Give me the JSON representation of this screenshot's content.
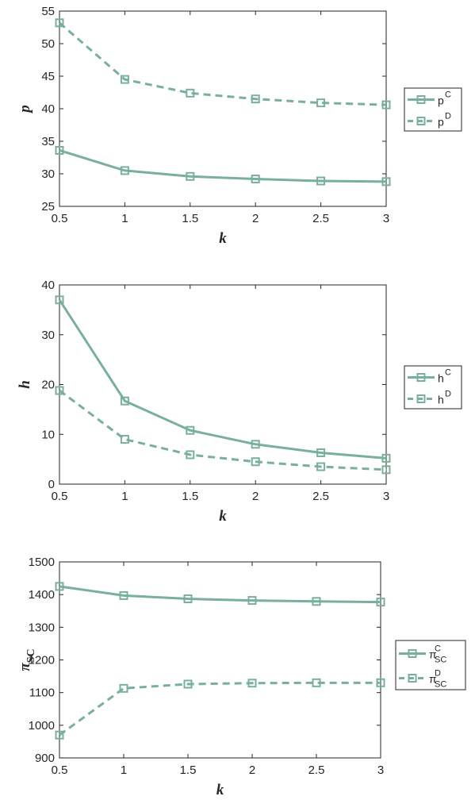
{
  "colors": {
    "series": "#79b099",
    "axis": "#262626",
    "background": "#ffffff"
  },
  "chart_data": [
    {
      "type": "line",
      "xlabel": "k",
      "ylabel": "p",
      "x": [
        0.5,
        1,
        1.5,
        2,
        2.5,
        3
      ],
      "xticks": [
        "0.5",
        "1",
        "1.5",
        "2",
        "2.5",
        "3"
      ],
      "ylim": [
        25,
        55
      ],
      "yticks": [
        "25",
        "30",
        "35",
        "40",
        "45",
        "50",
        "55"
      ],
      "legend_position": "outside-right",
      "series": [
        {
          "name": "p",
          "sup": "C",
          "sub": "",
          "style": "solid",
          "marker": "square",
          "values": [
            33.6,
            30.5,
            29.6,
            29.2,
            28.9,
            28.8
          ]
        },
        {
          "name": "p",
          "sup": "D",
          "sub": "",
          "style": "dashed",
          "marker": "square",
          "values": [
            53.2,
            44.5,
            42.4,
            41.5,
            40.9,
            40.6
          ]
        }
      ]
    },
    {
      "type": "line",
      "xlabel": "k",
      "ylabel": "h",
      "x": [
        0.5,
        1,
        1.5,
        2,
        2.5,
        3
      ],
      "xticks": [
        "0.5",
        "1",
        "1.5",
        "2",
        "2.5",
        "3"
      ],
      "ylim": [
        0,
        40
      ],
      "yticks": [
        "0",
        "10",
        "20",
        "30",
        "40"
      ],
      "legend_position": "outside-right",
      "series": [
        {
          "name": "h",
          "sup": "C",
          "sub": "",
          "style": "solid",
          "marker": "square",
          "values": [
            37.0,
            16.7,
            10.8,
            8.0,
            6.3,
            5.2
          ]
        },
        {
          "name": "h",
          "sup": "D",
          "sub": "",
          "style": "dashed",
          "marker": "square",
          "values": [
            18.8,
            9.0,
            5.9,
            4.5,
            3.5,
            2.9
          ]
        }
      ]
    },
    {
      "type": "line",
      "xlabel": "k",
      "ylabel": "π",
      "ylabel_sub": "SC",
      "x": [
        0.5,
        1,
        1.5,
        2,
        2.5,
        3
      ],
      "xticks": [
        "0.5",
        "1",
        "1.5",
        "2",
        "2.5",
        "3"
      ],
      "ylim": [
        900,
        1500
      ],
      "yticks": [
        "900",
        "1000",
        "1100",
        "1200",
        "1300",
        "1400",
        "1500"
      ],
      "legend_position": "outside-right",
      "series": [
        {
          "name": "π",
          "sup": "C",
          "sub": "SC",
          "style": "solid",
          "marker": "square",
          "values": [
            1425,
            1397,
            1387,
            1382,
            1379,
            1377
          ]
        },
        {
          "name": "π",
          "sup": "D",
          "sub": "SC",
          "style": "dashed",
          "marker": "square",
          "values": [
            970,
            1113,
            1126,
            1129,
            1130,
            1130
          ]
        }
      ]
    }
  ]
}
